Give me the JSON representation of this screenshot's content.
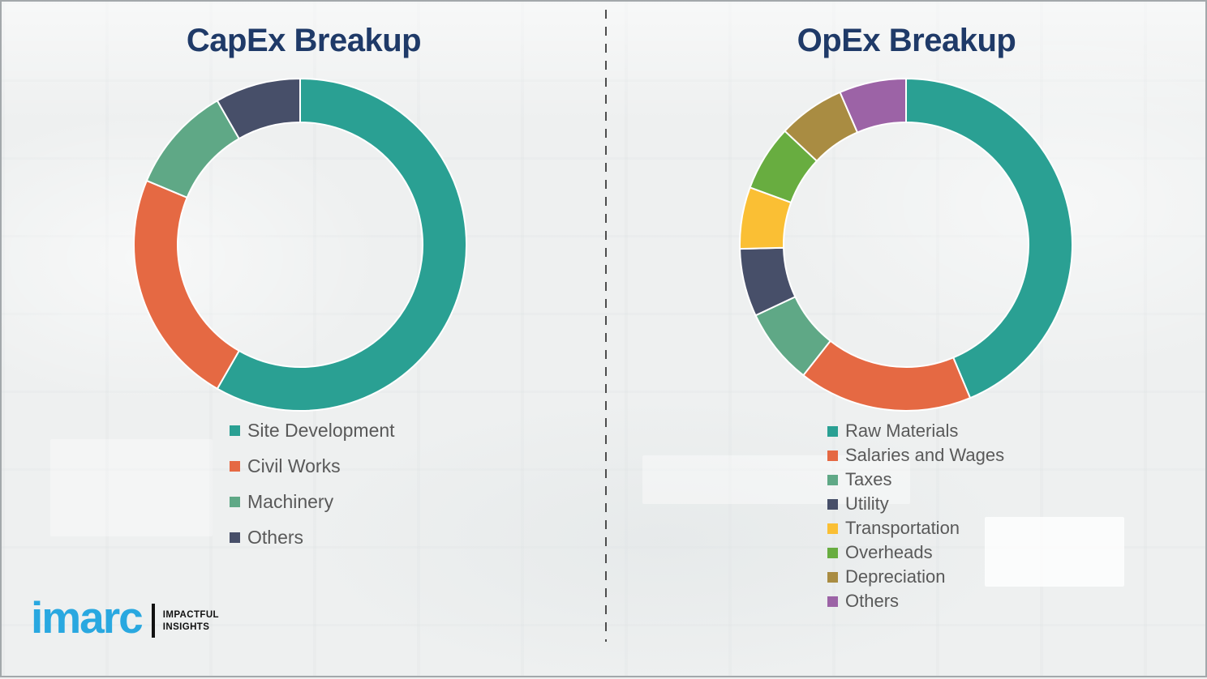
{
  "page": {
    "background_color": "#eef0f0",
    "border_color": "#a3a8ab",
    "divider": {
      "orientation": "vertical",
      "style": "dashed",
      "color": "#4d4d4d"
    }
  },
  "text_colors": {
    "title": "#1f3a68",
    "legend": "#595959"
  },
  "brand": {
    "logo_text": "imarc",
    "logo_color": "#29a8e0",
    "tagline_line1": "IMPACTFUL",
    "tagline_line2": "INSIGHTS",
    "tagline_color": "#111111",
    "bar_color": "#111111"
  },
  "chart_data": [
    {
      "type": "pie",
      "variant": "donut",
      "title": "CapEx Breakup",
      "categories": [
        "Site Development",
        "Civil Works",
        "Machinery",
        "Others"
      ],
      "values": [
        58.3,
        23.0,
        10.4,
        8.3
      ],
      "colors": [
        "#2aa093",
        "#e56943",
        "#5fa886",
        "#474f69"
      ],
      "start_angle_deg": 0,
      "direction": "clockwise",
      "legend_position": "below-left",
      "outer_radius": 205,
      "inner_radius": 151
    },
    {
      "type": "pie",
      "variant": "donut",
      "title": "OpEx Breakup",
      "categories": [
        "Raw Materials",
        "Salaries and Wages",
        "Taxes",
        "Utility",
        "Transportation",
        "Overheads",
        "Depreciation",
        "Others"
      ],
      "values": [
        43.7,
        16.9,
        7.4,
        6.6,
        6.0,
        6.4,
        6.5,
        6.5
      ],
      "colors": [
        "#2aa093",
        "#e56943",
        "#5fa886",
        "#474f69",
        "#fabf34",
        "#68ad40",
        "#a98c42",
        "#9c63a6"
      ],
      "start_angle_deg": 0,
      "direction": "clockwise",
      "legend_position": "below-left",
      "outer_radius": 205,
      "inner_radius": 151
    }
  ]
}
